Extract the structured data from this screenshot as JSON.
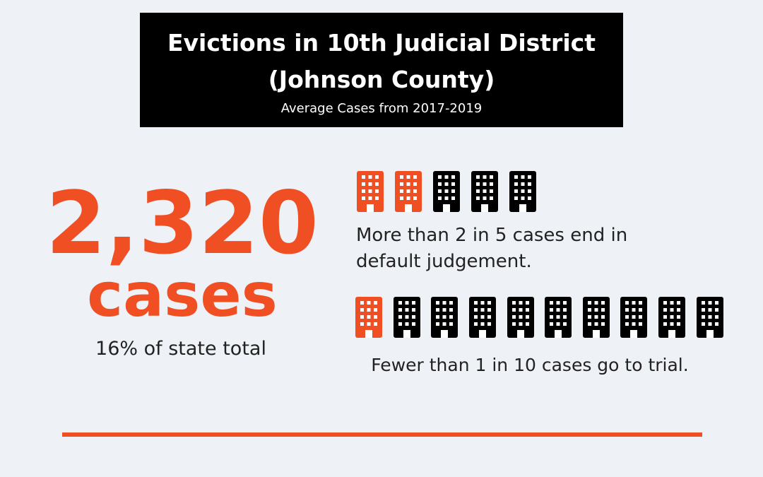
{
  "header": {
    "title_line1": "Evictions in 10th Judicial District",
    "title_line2": "(Johnson County)",
    "subtitle": "Average Cases from 2017-2019"
  },
  "stat": {
    "number": "2,320",
    "unit": "cases",
    "note": "16% of state total"
  },
  "facts": [
    {
      "text_line1": "More than 2 in 5 cases end in",
      "text_line2": "default judgement."
    },
    {
      "text": "Fewer than 1 in 10 cases go to trial."
    }
  ]
}
